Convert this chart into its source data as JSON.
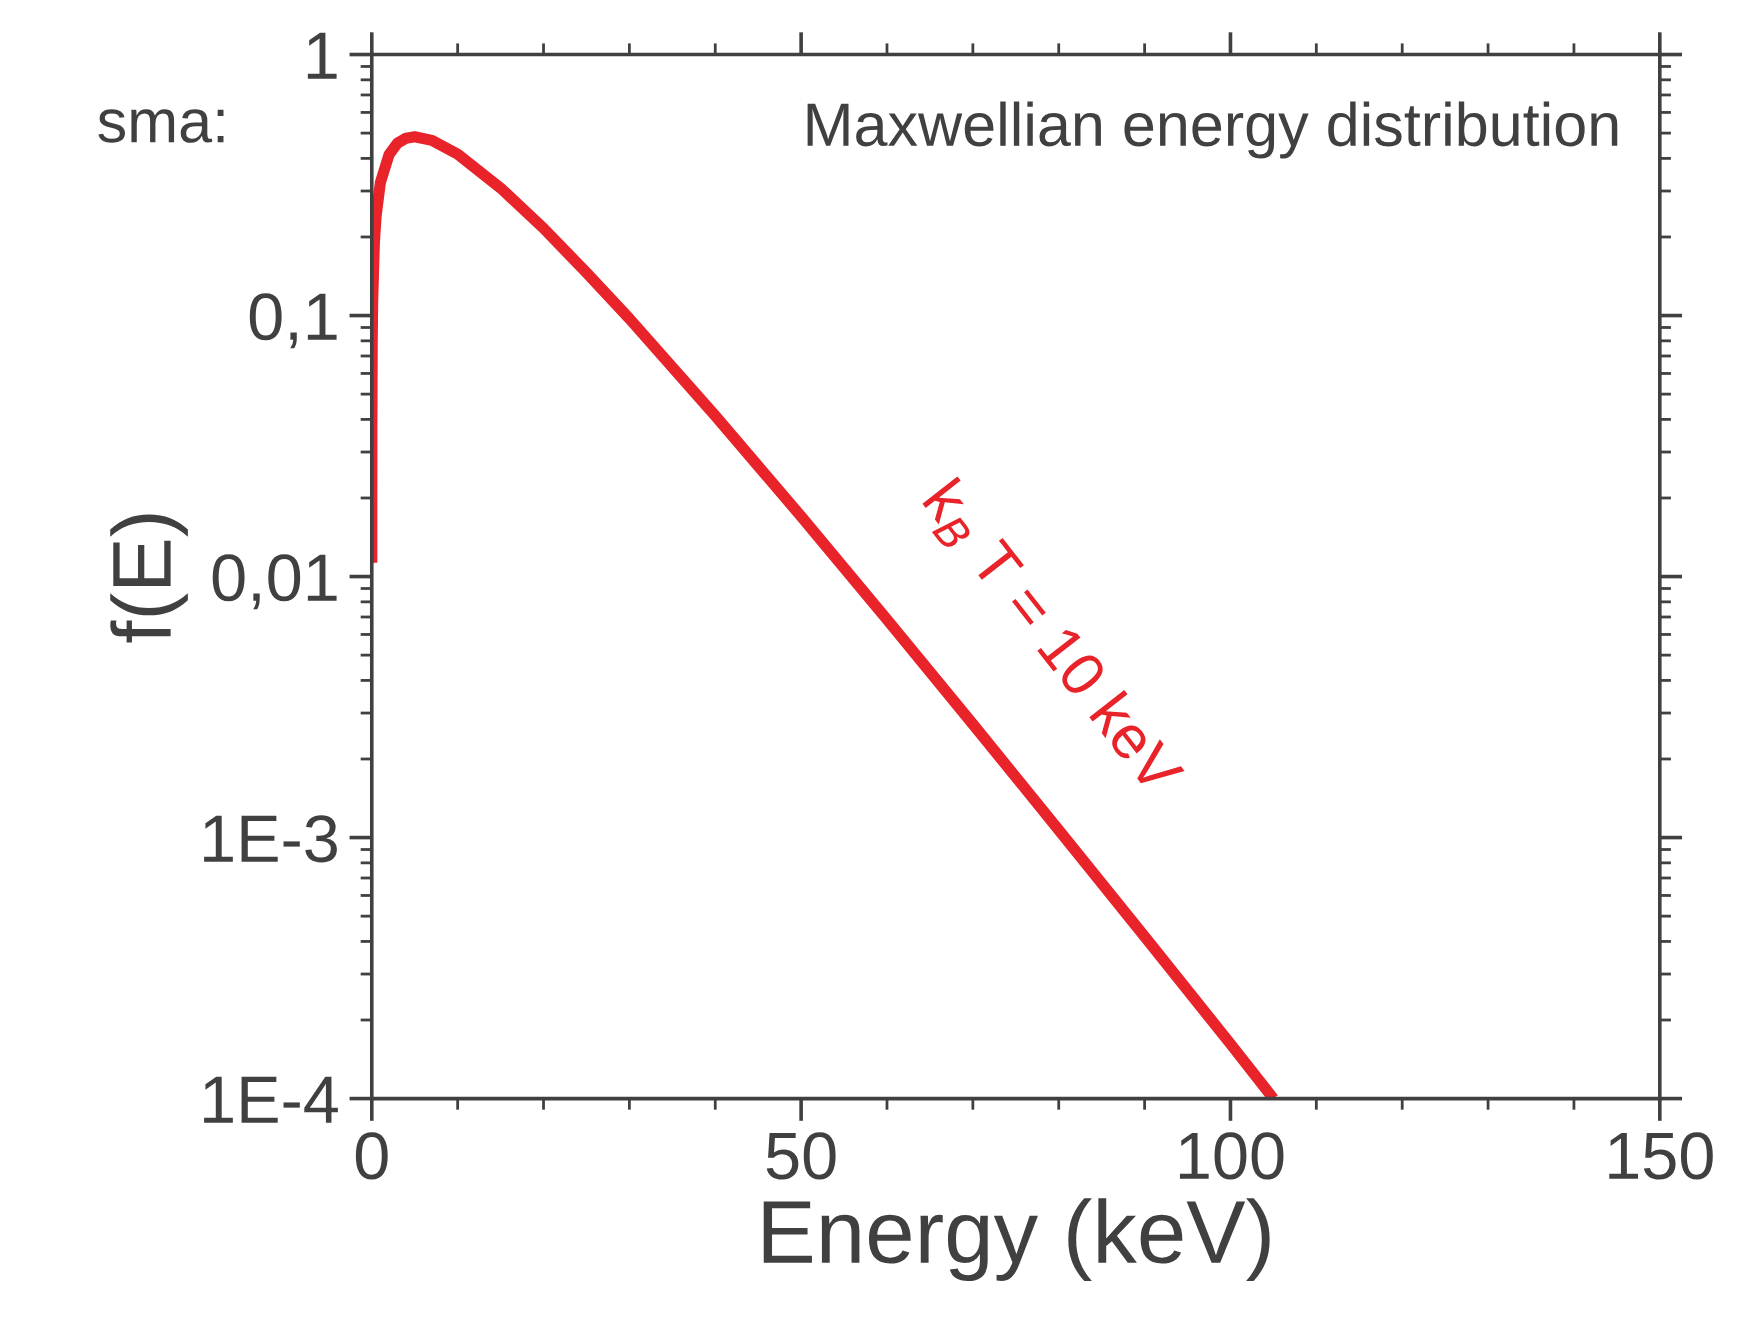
{
  "chart_data": {
    "type": "line",
    "xlabel": "Energy (keV)",
    "ylabel": "f(E)",
    "log": "y",
    "xlim": [
      0,
      150
    ],
    "xticks": [
      0,
      50,
      100,
      150
    ],
    "ylim": [
      0.0001,
      1
    ],
    "yticks": [
      {
        "value": 0.0001,
        "label": "1E-4"
      },
      {
        "value": 0.001,
        "label": "1E-3"
      },
      {
        "value": 0.01,
        "label": "0,01"
      },
      {
        "value": 0.1,
        "label": "0,1"
      },
      {
        "value": 1,
        "label": "1"
      }
    ],
    "grid": false,
    "marker": "none",
    "line_style": "solid",
    "series": [
      {
        "color": "#e8232a",
        "x": [
          0.001,
          0.01,
          0.05,
          0.1,
          0.3,
          0.5,
          1,
          2,
          3,
          4,
          5,
          7,
          10,
          15,
          20,
          25,
          30,
          40,
          50,
          60,
          70,
          80,
          90,
          100,
          105
        ],
        "values": [
          0.0113,
          0.0357,
          0.079,
          0.112,
          0.19,
          0.24,
          0.323,
          0.413,
          0.458,
          0.478,
          0.484,
          0.469,
          0.415,
          0.308,
          0.216,
          0.146,
          0.0973,
          0.0413,
          0.017,
          0.00685,
          0.00272,
          0.00107,
          0.000418,
          0.000162,
          0.0001
        ]
      }
    ],
    "annotations": [
      "Maxwellian energy distribution",
      "sma:",
      "k$_{B}$ T = 10 keV"
    ]
  }
}
